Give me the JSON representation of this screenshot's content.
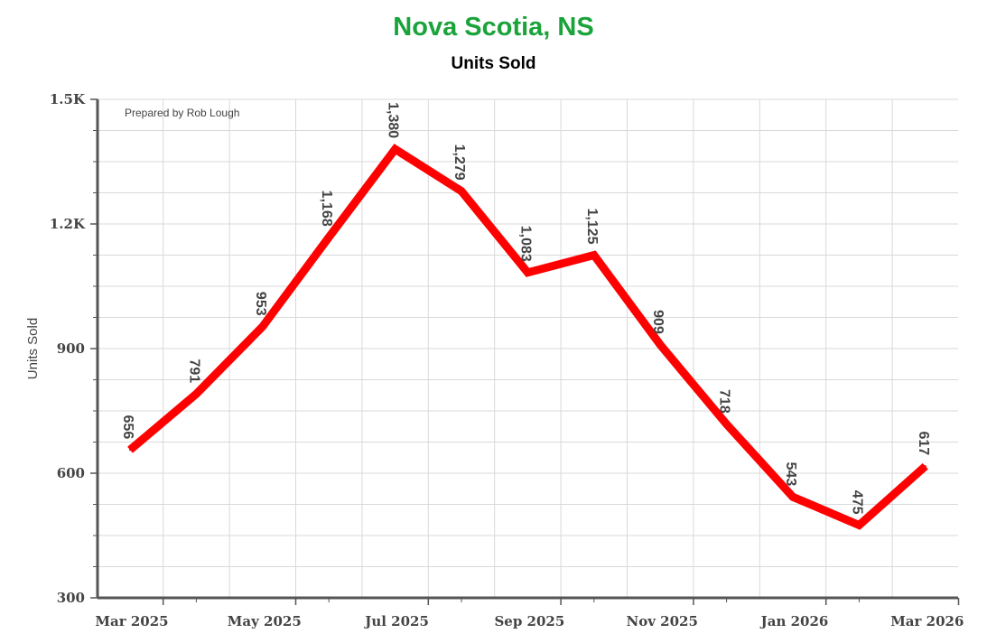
{
  "title": "Nova Scotia, NS",
  "subtitle": "Units Sold",
  "colors": {
    "title": "#1aa33a",
    "line": "#ff0000",
    "grid": "#d9d9d9",
    "axis": "#555555",
    "text": "#444444"
  },
  "chart_data": {
    "type": "line",
    "title": "Nova Scotia, NS",
    "subtitle": "Units Sold",
    "ylabel": "Units Sold",
    "xlabel": "",
    "credit": "Prepared by Rob Lough",
    "ylim": [
      300,
      1500
    ],
    "y_ticks": [
      300,
      600,
      900,
      1200,
      1500
    ],
    "y_tick_labels": [
      "300",
      "600",
      "900",
      "1.2K",
      "1.5K"
    ],
    "x_range": [
      "2025-03",
      "2026-03"
    ],
    "x_tick_labels": [
      "Mar 2025",
      "May 2025",
      "Jul 2025",
      "Sep 2025",
      "Nov 2025",
      "Jan 2026",
      "Mar 2026"
    ],
    "grid": true,
    "legend": "none",
    "series": [
      {
        "x": [
          "2025-03",
          "2025-04",
          "2025-05",
          "2025-06",
          "2025-07",
          "2025-08",
          "2025-09",
          "2025-10",
          "2025-11",
          "2025-12",
          "2026-01",
          "2026-02",
          "2026-03"
        ],
        "values": [
          656,
          791,
          953,
          1168,
          1380,
          1279,
          1083,
          1125,
          909,
          718,
          543,
          475,
          617
        ],
        "labels": [
          "656",
          "791",
          "953",
          "1,168",
          "1,380",
          "1,279",
          "1,083",
          "1,125",
          "909",
          "718",
          "543",
          "475",
          "617"
        ]
      }
    ]
  }
}
